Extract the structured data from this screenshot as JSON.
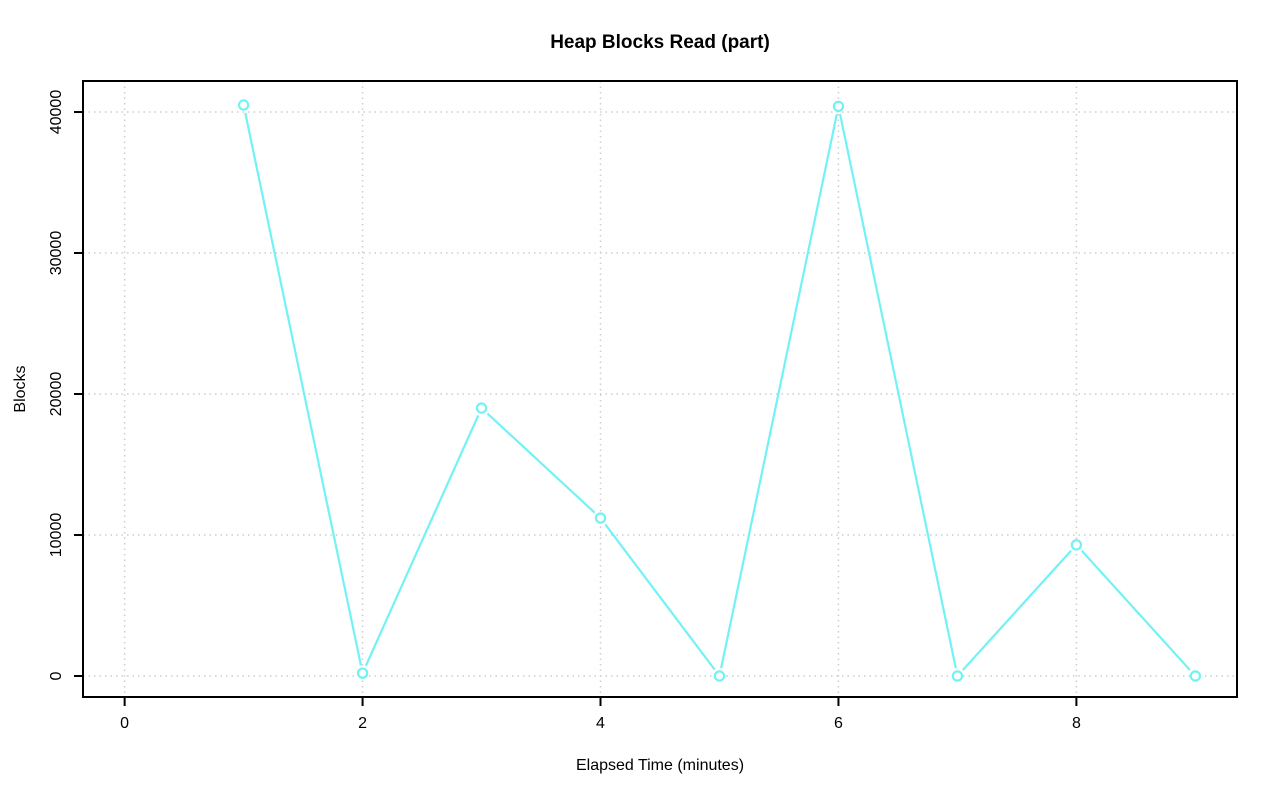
{
  "chart_data": {
    "type": "line",
    "title": "Heap Blocks Read (part)",
    "xlabel": "Elapsed Time (minutes)",
    "ylabel": "Blocks",
    "x": [
      1,
      2,
      3,
      4,
      5,
      6,
      7,
      8,
      9
    ],
    "values": [
      40500,
      200,
      19000,
      11200,
      0,
      40400,
      0,
      9300,
      0
    ],
    "xlim": [
      -0.35,
      9.35
    ],
    "ylim": [
      -1490,
      42200
    ],
    "x_ticks": {
      "values": [
        0,
        2,
        4,
        6,
        8
      ],
      "labels": [
        "0",
        "2",
        "4",
        "6",
        "8"
      ]
    },
    "y_ticks": {
      "values": [
        0,
        10000,
        20000,
        30000,
        40000
      ],
      "labels": [
        "0",
        "10000",
        "20000",
        "30000",
        "40000"
      ]
    },
    "grid": "dotted",
    "legend": "none",
    "marker": "open-circle",
    "line_style": "segments-with-point-gaps",
    "colors": {
      "line": "#72F2F4",
      "grid": "#cdcdcd",
      "axis": "#000000",
      "text": "#000000",
      "background": "#ffffff"
    }
  }
}
